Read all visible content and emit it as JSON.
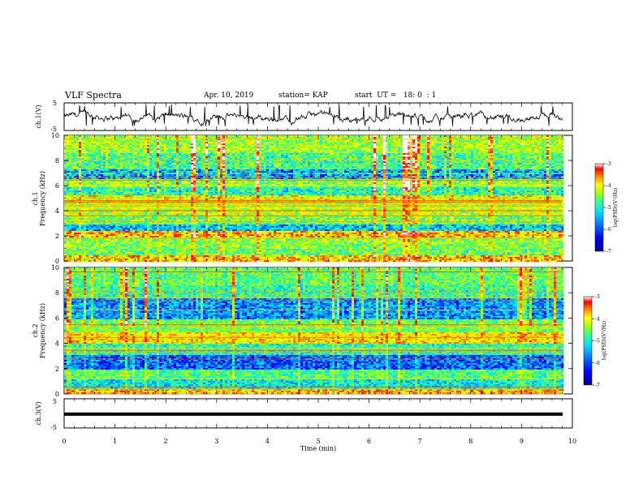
{
  "header": {
    "title": "VLF Spectra",
    "date": "Apr. 10, 2019",
    "station": "station= KAP",
    "start_ut": "start  UT =   18: 0  : 1"
  },
  "colors": {
    "colormap": [
      "#00008a",
      "#0000ff",
      "#0080ff",
      "#00e0ff",
      "#40ff80",
      "#b0ff00",
      "#ffff00",
      "#ff8000",
      "#ff0000",
      "#ffffff"
    ],
    "trace": "#000000"
  },
  "chart_data": [
    {
      "type": "line",
      "panel": "ch1-waveform",
      "ylabel": "ch.1(V)",
      "yticks": [
        "5",
        "-5"
      ],
      "ylim": [
        -5,
        5
      ],
      "xlim": [
        0,
        10
      ],
      "series": [
        {
          "mean": -0.2,
          "amplitude_range": [
            -3.5,
            4.5
          ]
        }
      ]
    },
    {
      "type": "heatmap",
      "panel": "ch1-spectrogram",
      "ylabel": "ch.1\nFrequency (kHz)",
      "ylabel_line1": "ch.1",
      "ylabel_line2": "Frequency (kHz)",
      "yticks": [
        "0",
        "2",
        "4",
        "6",
        "8",
        "10"
      ],
      "ylim": [
        0,
        10
      ],
      "xlim": [
        0,
        9.8
      ],
      "colorbar": {
        "label": "log(PSD)(V²/Hz)",
        "ticks": [
          "-3",
          "-4",
          "-5",
          "-6",
          "-7"
        ],
        "range": [
          -7,
          -3
        ]
      },
      "bands_khz": [
        {
          "f": [
            0.0,
            0.5
          ],
          "level": -4.2
        },
        {
          "f": [
            0.5,
            1.0
          ],
          "level": -5.1
        },
        {
          "f": [
            1.0,
            2.0
          ],
          "level": -4.9
        },
        {
          "f": [
            2.0,
            2.4
          ],
          "level": -4.1
        },
        {
          "f": [
            2.4,
            3.0
          ],
          "level": -5.8
        },
        {
          "f": [
            3.0,
            3.6
          ],
          "level": -5.0
        },
        {
          "f": [
            3.6,
            4.8
          ],
          "level": -4.7
        },
        {
          "f": [
            4.8,
            5.3
          ],
          "level": -4.4
        },
        {
          "f": [
            5.3,
            6.0
          ],
          "level": -5.4
        },
        {
          "f": [
            6.0,
            6.6
          ],
          "level": -4.9
        },
        {
          "f": [
            6.6,
            7.4
          ],
          "level": -5.9
        },
        {
          "f": [
            7.4,
            8.6
          ],
          "level": -5.2
        },
        {
          "f": [
            8.6,
            10.0
          ],
          "level": -4.8
        }
      ]
    },
    {
      "type": "heatmap",
      "panel": "ch2-spectrogram",
      "ylabel": "ch.2\nFrequency (kHz)",
      "ylabel_line1": "ch.2",
      "ylabel_line2": "Frequency (kHz)",
      "yticks": [
        "0",
        "2",
        "4",
        "6",
        "8",
        "10"
      ],
      "ylim": [
        0,
        10
      ],
      "xlim": [
        0,
        9.8
      ],
      "colorbar": {
        "label": "log(PSD)(V²/Hz)",
        "ticks": [
          "-3",
          "-4",
          "-5",
          "-6",
          "-7"
        ],
        "range": [
          -7,
          -3
        ]
      },
      "bands_khz": [
        {
          "f": [
            0.0,
            0.4
          ],
          "level": -4.1
        },
        {
          "f": [
            0.4,
            1.2
          ],
          "level": -5.6
        },
        {
          "f": [
            1.2,
            2.0
          ],
          "level": -5.2
        },
        {
          "f": [
            2.0,
            3.2
          ],
          "level": -6.2
        },
        {
          "f": [
            3.2,
            4.0
          ],
          "level": -5.4
        },
        {
          "f": [
            4.0,
            5.0
          ],
          "level": -4.3
        },
        {
          "f": [
            5.0,
            6.0
          ],
          "level": -5.0
        },
        {
          "f": [
            6.0,
            7.6
          ],
          "level": -6.0
        },
        {
          "f": [
            7.6,
            8.6
          ],
          "level": -5.3
        },
        {
          "f": [
            8.6,
            10.0
          ],
          "level": -5.1
        }
      ]
    },
    {
      "type": "line",
      "panel": "ch3-waveform",
      "ylabel": "ch.3(V)",
      "yticks": [
        "5",
        "-5"
      ],
      "ylim": [
        -5,
        5
      ],
      "xlim": [
        0,
        10
      ],
      "series": [
        {
          "constant": 0
        }
      ]
    }
  ],
  "xaxis": {
    "label": "Time (min)",
    "ticks": [
      "0",
      "1",
      "2",
      "3",
      "4",
      "5",
      "6",
      "7",
      "8",
      "9",
      "10"
    ],
    "range": [
      0,
      10
    ]
  }
}
